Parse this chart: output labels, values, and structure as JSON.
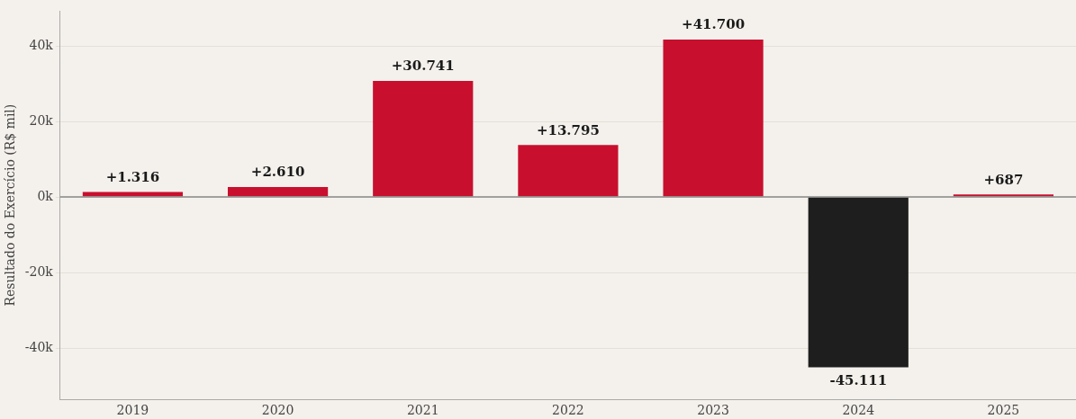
{
  "chart_data": {
    "type": "bar",
    "ylabel": "Resultado do Exercício (R$ mil)",
    "categories": [
      "2019",
      "2020",
      "2021",
      "2022",
      "2023",
      "2024",
      "2025"
    ],
    "values": [
      1316,
      2610,
      30741,
      13795,
      41700,
      -45111,
      687
    ],
    "colors": [
      "#c8102e",
      "#c8102e",
      "#c8102e",
      "#c8102e",
      "#c8102e",
      "#1e1e1e",
      "#c8102e"
    ],
    "value_labels": [
      "+1.316",
      "+2.610",
      "+30.741",
      "+13.795",
      "+41.700",
      "-45.111",
      "+687"
    ],
    "ylim": [
      -53600,
      49300
    ],
    "yticks": [
      {
        "value": -40000,
        "label": "-40k"
      },
      {
        "value": -20000,
        "label": "-20k"
      },
      {
        "value": 0,
        "label": "0k"
      },
      {
        "value": 20000,
        "label": "20k"
      },
      {
        "value": 40000,
        "label": "40k"
      }
    ],
    "ref_lines": [
      {
        "axis": "y",
        "value": 0,
        "color": "#888888"
      }
    ],
    "grid": "y",
    "legend": false
  }
}
